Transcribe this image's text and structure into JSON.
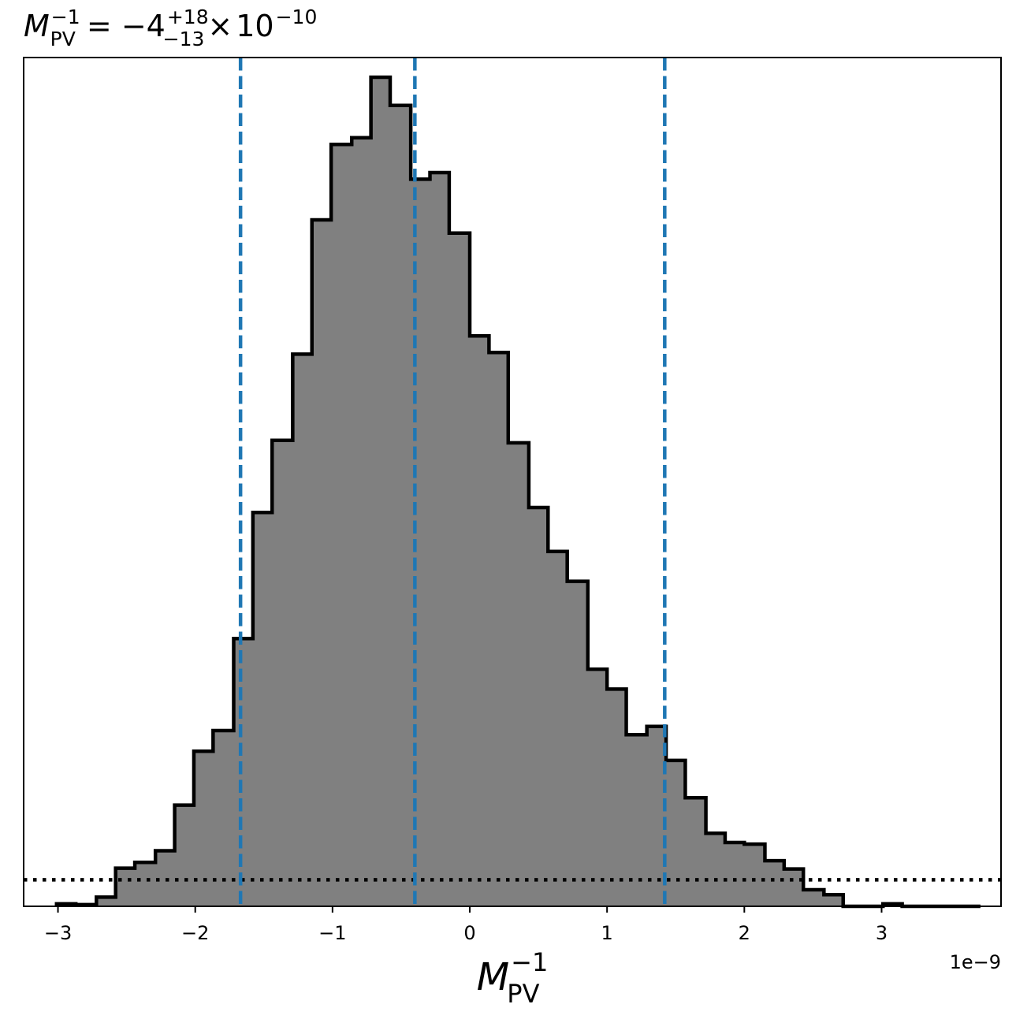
{
  "chart_data": {
    "type": "histogram",
    "title": {
      "symbol": "M",
      "sub": "PV",
      "sup": "−1",
      "equals": " = −4",
      "plus_err": "+18",
      "minus_err": "−13",
      "times": "×",
      "base": "10",
      "exponent": "−10"
    },
    "xlabel": {
      "symbol": "M",
      "sub": "PV",
      "sup": "−1"
    },
    "x_offset_label": "1e−9",
    "x_unit_scale": 1e-09,
    "xlim": [
      -3.25,
      3.87
    ],
    "ylim": [
      0,
      1.0
    ],
    "xticks": [
      {
        "value": -3,
        "label": "−3"
      },
      {
        "value": -2,
        "label": "−2"
      },
      {
        "value": -1,
        "label": "−1"
      },
      {
        "value": 0,
        "label": "0"
      },
      {
        "value": 1,
        "label": "1"
      },
      {
        "value": 2,
        "label": "2"
      },
      {
        "value": 3,
        "label": "3"
      }
    ],
    "show_yticks": false,
    "grid": false,
    "bin_edges": [
      -3.01,
      -2.87,
      -2.72,
      -2.58,
      -2.44,
      -2.29,
      -2.15,
      -2.01,
      -1.87,
      -1.72,
      -1.58,
      -1.44,
      -1.29,
      -1.15,
      -1.01,
      -0.86,
      -0.72,
      -0.58,
      -0.43,
      -0.29,
      -0.15,
      0.0,
      0.14,
      0.28,
      0.43,
      0.57,
      0.71,
      0.86,
      1.0,
      1.14,
      1.29,
      1.43,
      1.57,
      1.72,
      1.86,
      2.0,
      2.15,
      2.29,
      2.43,
      2.58,
      2.72,
      2.86,
      3.01,
      3.15,
      3.29,
      3.44,
      3.58,
      3.72
    ],
    "counts": [
      0.003,
      0.002,
      0.011,
      0.046,
      0.053,
      0.067,
      0.122,
      0.187,
      0.212,
      0.323,
      0.475,
      0.562,
      0.666,
      0.828,
      0.919,
      0.927,
      1.0,
      0.966,
      0.877,
      0.885,
      0.812,
      0.688,
      0.668,
      0.559,
      0.481,
      0.428,
      0.392,
      0.286,
      0.262,
      0.207,
      0.217,
      0.176,
      0.131,
      0.088,
      0.077,
      0.075,
      0.055,
      0.045,
      0.02,
      0.014,
      0.0,
      0.0,
      0.003,
      0.0,
      0.0,
      0.0,
      0.0
    ],
    "hist_fill": "#808080",
    "hist_edge": "#000000",
    "vlines": [
      {
        "value": -1.67,
        "style": "dashed",
        "color": "#1f77b4"
      },
      {
        "value": -0.4,
        "style": "dashed",
        "color": "#1f77b4"
      },
      {
        "value": 1.42,
        "style": "dashed",
        "color": "#1f77b4"
      }
    ],
    "hline": {
      "value": 0.032,
      "style": "dotted",
      "color": "#000000"
    }
  }
}
